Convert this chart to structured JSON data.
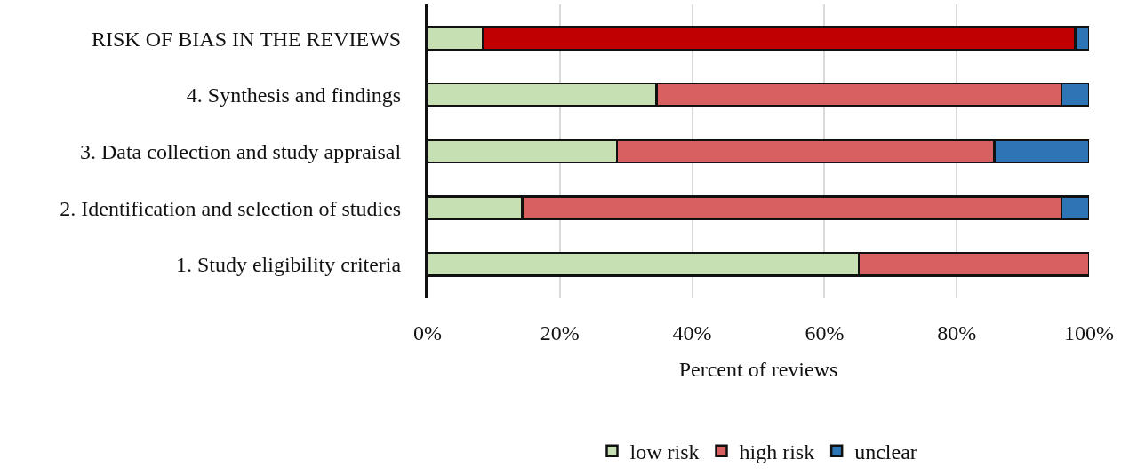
{
  "chart_data": {
    "type": "bar",
    "orientation": "horizontal",
    "stacked": true,
    "xlabel": "Percent of reviews",
    "categories": [
      "RISK OF BIAS IN THE REVIEWS",
      "4. Synthesis and findings",
      "3. Data collection and study appraisal",
      "2. Identification and selection of studies",
      "1. Study eligibility criteria"
    ],
    "series": [
      {
        "name": "low risk",
        "color": "#c6e0b4",
        "values": [
          8.3,
          34.6,
          28.6,
          14.3,
          65.2
        ]
      },
      {
        "name": "high risk",
        "color": "#d96060",
        "colors": [
          "#c00000",
          "#d96060",
          "#d96060",
          "#d96060",
          "#d96060"
        ],
        "values": [
          89.6,
          61.2,
          57.1,
          81.5,
          34.8
        ]
      },
      {
        "name": "unclear",
        "color": "#2e75b6",
        "values": [
          2.1,
          4.2,
          14.3,
          4.2,
          null
        ]
      }
    ],
    "xlim": [
      0,
      100
    ],
    "xticks": [
      {
        "value": 0,
        "label": "0%"
      },
      {
        "value": 20,
        "label": "20%"
      },
      {
        "value": 40,
        "label": "40%"
      },
      {
        "value": 60,
        "label": "60%"
      },
      {
        "value": 80,
        "label": "80%"
      },
      {
        "value": 100,
        "label": "100%"
      }
    ],
    "grid": "x",
    "legend": "bottom"
  }
}
